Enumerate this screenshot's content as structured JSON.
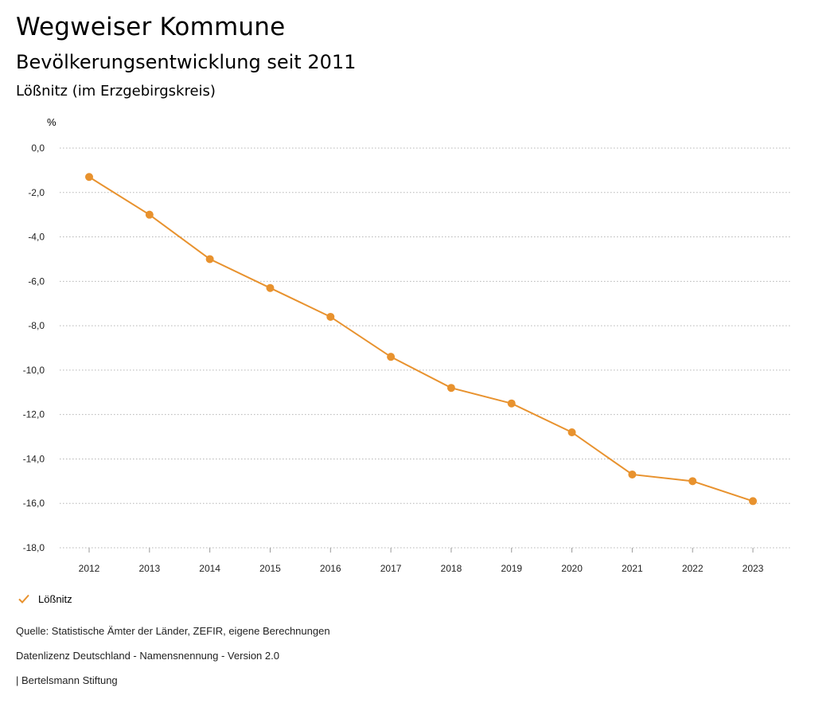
{
  "header": {
    "title": "Wegweiser Kommune",
    "subtitle": "Bevölkerungsentwicklung seit 2011",
    "region": "Lößnitz (im Erzgebirgskreis)"
  },
  "chart_data": {
    "type": "line",
    "ylabel": "%",
    "ylim": [
      -18,
      0
    ],
    "yticks": [
      "0,0",
      "-2,0",
      "-4,0",
      "-6,0",
      "-8,0",
      "-10,0",
      "-12,0",
      "-14,0",
      "-16,0",
      "-18,0"
    ],
    "ytick_values": [
      0,
      -2,
      -4,
      -6,
      -8,
      -10,
      -12,
      -14,
      -16,
      -18
    ],
    "categories": [
      "2012",
      "2013",
      "2014",
      "2015",
      "2016",
      "2017",
      "2018",
      "2019",
      "2020",
      "2021",
      "2022",
      "2023"
    ],
    "series": [
      {
        "name": "Lößnitz",
        "color": "#e8922e",
        "values": [
          -1.3,
          -3.0,
          -5.0,
          -6.3,
          -7.6,
          -9.4,
          -10.8,
          -11.5,
          -12.8,
          -14.7,
          -15.0,
          -15.9
        ]
      }
    ],
    "grid": "horizontal-dotted",
    "legend": "bottom-left"
  },
  "legend": {
    "label": "Lößnitz",
    "icon": "check-icon"
  },
  "footer": {
    "source": "Quelle: Statistische Ämter der Länder, ZEFIR, eigene Berechnungen",
    "license": "Datenlizenz Deutschland - Namensnennung - Version 2.0",
    "publisher": "| Bertelsmann Stiftung"
  }
}
